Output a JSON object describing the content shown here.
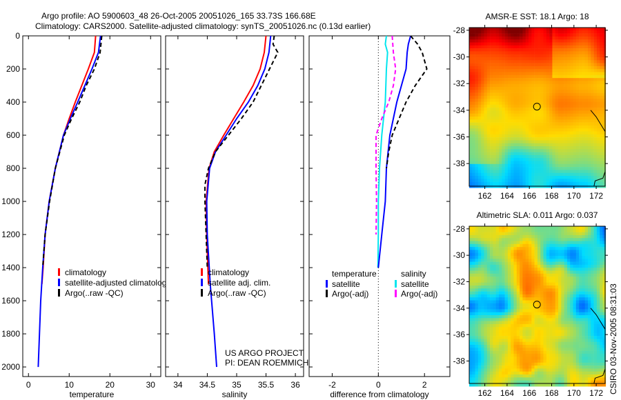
{
  "title_line1": "Argo profile: AO 5900603_48 26-Oct-2005 20051026_165 33.73S 166.68E",
  "title_line2": "Climatology: CARS2000. Satellite-adjusted climatology: synTS_20051026.nc (0.13d earlier)",
  "credit": [
    "US ARGO PROJECT",
    "PI: DEAN ROEMMICH"
  ],
  "timestamp": "CSIRO 03-Nov-2005 08:31:03",
  "colors": {
    "red": "#ff0000",
    "blue": "#0000ff",
    "black": "#000000",
    "cyan": "#00e5ee",
    "magenta": "#ff00ff"
  },
  "chart_data": [
    {
      "type": "line",
      "xlabel": "temperature",
      "xlim": [
        -1.4,
        32.5
      ],
      "ylim": [
        0,
        2058
      ],
      "xticks": [
        0,
        10,
        20,
        30
      ],
      "yticks": [
        0,
        200,
        400,
        600,
        800,
        1000,
        1200,
        1400,
        1600,
        1800,
        2000
      ],
      "legend": [
        "climatology",
        "satellite-adjusted climatology",
        "Argo(..raw -QC)"
      ],
      "series": [
        {
          "name": "climatology",
          "color": "red",
          "dash": false,
          "depth": [
            0,
            100,
            200,
            400,
            500,
            600,
            800,
            1000,
            1200,
            1400,
            1500
          ],
          "values": [
            16.5,
            16.2,
            14.7,
            11.5,
            10,
            8.6,
            6.6,
            5.1,
            4.1,
            3.6,
            3.3
          ]
        },
        {
          "name": "satellite-adjusted climatology",
          "color": "blue",
          "dash": false,
          "depth": [
            0,
            100,
            200,
            400,
            500,
            600,
            800,
            1000,
            1200,
            1400,
            1600,
            1800,
            2000
          ],
          "values": [
            17.7,
            17.2,
            15.6,
            12.1,
            10.3,
            8.6,
            6.6,
            5.1,
            4.1,
            3.5,
            3.0,
            2.7,
            2.4
          ]
        },
        {
          "name": "Argo(..raw -QC)",
          "color": "black",
          "dash": true,
          "depth": [
            0,
            100,
            200,
            300,
            400,
            500,
            600,
            800,
            1000,
            1200,
            1400
          ],
          "values": [
            18,
            17.6,
            16.2,
            14.2,
            12.6,
            10.6,
            8.8,
            6.6,
            5.2,
            4.1,
            3.5
          ]
        }
      ]
    },
    {
      "type": "line",
      "xlabel": "salinity",
      "xlim": [
        33.79,
        36.14
      ],
      "ylim": [
        0,
        2058
      ],
      "xticks": [
        34,
        34.5,
        35,
        35.5,
        36
      ],
      "legend": [
        "climatology",
        "satellite adj. clim.",
        "Argo(..raw -QC)"
      ],
      "series": [
        {
          "name": "climatology",
          "color": "red",
          "dash": false,
          "depth": [
            0,
            100,
            200,
            300,
            400,
            500,
            600,
            700,
            800,
            1000,
            1200,
            1500
          ],
          "values": [
            35.5,
            35.47,
            35.4,
            35.28,
            35.12,
            34.95,
            34.78,
            34.62,
            34.53,
            34.48,
            34.49,
            34.52
          ]
        },
        {
          "name": "satellite adj. clim.",
          "color": "blue",
          "dash": false,
          "depth": [
            0,
            100,
            200,
            300,
            400,
            500,
            600,
            700,
            800,
            1000,
            1200,
            1500,
            1800,
            2000
          ],
          "values": [
            35.58,
            35.55,
            35.48,
            35.36,
            35.2,
            35.0,
            34.82,
            34.64,
            34.54,
            34.49,
            34.5,
            34.55,
            34.62,
            34.66
          ]
        },
        {
          "name": "Argo(..raw -QC)",
          "color": "black",
          "dash": true,
          "depth": [
            0,
            50,
            100,
            200,
            300,
            400,
            500,
            600,
            700,
            800,
            900,
            1000,
            1200,
            1400
          ],
          "values": [
            35.64,
            35.62,
            35.7,
            35.56,
            35.42,
            35.28,
            35.08,
            34.86,
            34.64,
            34.52,
            34.46,
            34.46,
            34.48,
            34.5
          ]
        }
      ]
    },
    {
      "type": "line",
      "xlabel": "difference from climatology",
      "xlim": [
        -3,
        3.1
      ],
      "ylim": [
        0,
        2058
      ],
      "xticks": [
        -2,
        0,
        2
      ],
      "legend_groups": [
        {
          "title": "temperature",
          "items": [
            "satellite",
            "Argo(-adj)"
          ]
        },
        {
          "title": "salinity",
          "items": [
            "satellite",
            "Argo(-adj)"
          ]
        }
      ],
      "series": [
        {
          "name": "salinity satellite",
          "color": "cyan",
          "dash": false,
          "depth": [
            0,
            50,
            100,
            200,
            400,
            600,
            800,
            1000,
            1200,
            1400
          ],
          "values": [
            0.35,
            0.3,
            0.4,
            0.35,
            0.3,
            0.15,
            0.05,
            0.0,
            0.0,
            -0.02
          ]
        },
        {
          "name": "salinity Argo(-adj)",
          "color": "magenta",
          "dash": true,
          "depth": [
            0,
            100,
            200,
            300,
            400,
            500,
            600,
            800,
            1000,
            1200
          ],
          "values": [
            0.6,
            0.65,
            0.75,
            0.65,
            0.45,
            0.15,
            -0.1,
            -0.1,
            -0.08,
            -0.1
          ]
        },
        {
          "name": "temperature satellite",
          "color": "blue",
          "dash": false,
          "depth": [
            0,
            50,
            100,
            200,
            400,
            600,
            800,
            1000,
            1200,
            1400
          ],
          "values": [
            1.4,
            1.3,
            1.25,
            1.2,
            0.8,
            0.5,
            0.35,
            0.3,
            0.15,
            0.0
          ]
        },
        {
          "name": "temperature Argo(-adj)",
          "color": "black",
          "dash": true,
          "depth": [
            0,
            50,
            100,
            200,
            300,
            400,
            500,
            600,
            700,
            800
          ],
          "values": [
            1.4,
            1.7,
            1.9,
            2.1,
            1.6,
            1.2,
            0.9,
            0.6,
            0.45,
            0.35
          ]
        }
      ]
    }
  ],
  "maps": [
    {
      "title": "AMSR-E SST: 18.1 Argo: 18",
      "kind": "sst"
    },
    {
      "title": "Altimetric SLA: 0.011 Argo: 0.037",
      "kind": "sla"
    }
  ],
  "map_axes": {
    "lon": [
      160.6,
      172.8
    ],
    "lat": [
      -27.8,
      -39.7
    ],
    "lon_ticks": [
      162,
      164,
      166,
      168,
      170,
      172
    ],
    "lat_ticks": [
      -28,
      -30,
      -32,
      -34,
      -36,
      -38
    ],
    "float_lon": 166.68,
    "float_lat": -33.73
  }
}
